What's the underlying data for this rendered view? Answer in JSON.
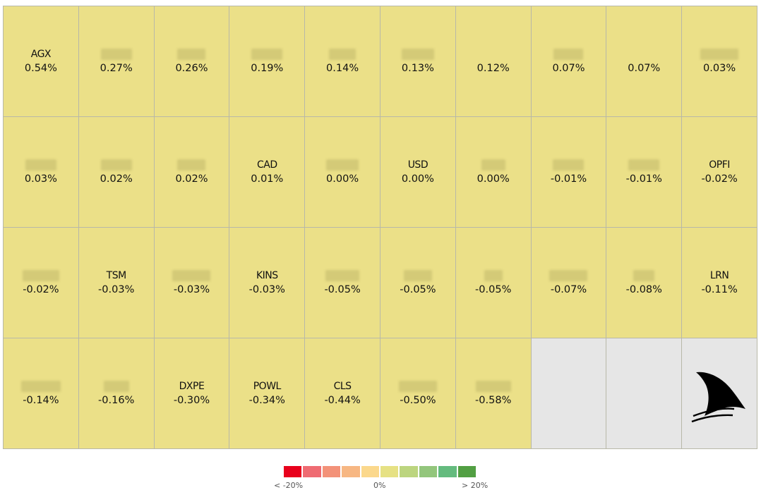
{
  "tiles": [
    {
      "symbol": "AGX",
      "change": "0.54%"
    },
    {
      "symbol": "",
      "change": "0.27%",
      "blur_w": 44
    },
    {
      "symbol": "",
      "change": "0.26%",
      "blur_w": 40
    },
    {
      "symbol": "",
      "change": "0.19%",
      "blur_w": 44
    },
    {
      "symbol": "",
      "change": "0.14%",
      "blur_w": 38
    },
    {
      "symbol": "",
      "change": "0.13%",
      "blur_w": 46
    },
    {
      "symbol": "",
      "change": "0.12%",
      "blur_w": 0
    },
    {
      "symbol": "",
      "change": "0.07%",
      "blur_w": 42
    },
    {
      "symbol": "",
      "change": "0.07%",
      "blur_w": 0
    },
    {
      "symbol": "",
      "change": "0.03%",
      "blur_w": 54
    },
    {
      "symbol": "",
      "change": "0.03%",
      "blur_w": 44
    },
    {
      "symbol": "",
      "change": "0.02%",
      "blur_w": 44
    },
    {
      "symbol": "",
      "change": "0.02%",
      "blur_w": 40
    },
    {
      "symbol": "CAD",
      "change": "0.01%"
    },
    {
      "symbol": "",
      "change": "0.00%",
      "blur_w": 46
    },
    {
      "symbol": "USD",
      "change": "0.00%"
    },
    {
      "symbol": "",
      "change": "0.00%",
      "blur_w": 34
    },
    {
      "symbol": "",
      "change": "-0.01%",
      "blur_w": 44
    },
    {
      "symbol": "",
      "change": "-0.01%",
      "blur_w": 44
    },
    {
      "symbol": "OPFI",
      "change": "-0.02%"
    },
    {
      "symbol": "",
      "change": "-0.02%",
      "blur_w": 52
    },
    {
      "symbol": "TSM",
      "change": "-0.03%"
    },
    {
      "symbol": "",
      "change": "-0.03%",
      "blur_w": 54
    },
    {
      "symbol": "KINS",
      "change": "-0.03%"
    },
    {
      "symbol": "",
      "change": "-0.05%",
      "blur_w": 48
    },
    {
      "symbol": "",
      "change": "-0.05%",
      "blur_w": 40
    },
    {
      "symbol": "",
      "change": "-0.05%",
      "blur_w": 26
    },
    {
      "symbol": "",
      "change": "-0.07%",
      "blur_w": 54
    },
    {
      "symbol": "",
      "change": "-0.08%",
      "blur_w": 30
    },
    {
      "symbol": "LRN",
      "change": "-0.11%"
    },
    {
      "symbol": "",
      "change": "-0.14%",
      "blur_w": 56
    },
    {
      "symbol": "",
      "change": "-0.16%",
      "blur_w": 36
    },
    {
      "symbol": "DXPE",
      "change": "-0.30%"
    },
    {
      "symbol": "POWL",
      "change": "-0.34%"
    },
    {
      "symbol": "CLS",
      "change": "-0.44%"
    },
    {
      "symbol": "",
      "change": "-0.50%",
      "blur_w": 54
    },
    {
      "symbol": "",
      "change": "-0.58%",
      "blur_w": 50
    }
  ],
  "tile_color": "#ebe088",
  "empty_tiles": 3,
  "logo": "shark-fin-icon",
  "legend": {
    "colors": [
      "#e8001c",
      "#ef6b72",
      "#f39279",
      "#f7b783",
      "#fbd88c",
      "#e6e184",
      "#bcd57f",
      "#93c67c",
      "#64bb7e",
      "#529f43"
    ],
    "low_label": "< -20%",
    "mid_label": "0%",
    "high_label": "> 20%"
  }
}
